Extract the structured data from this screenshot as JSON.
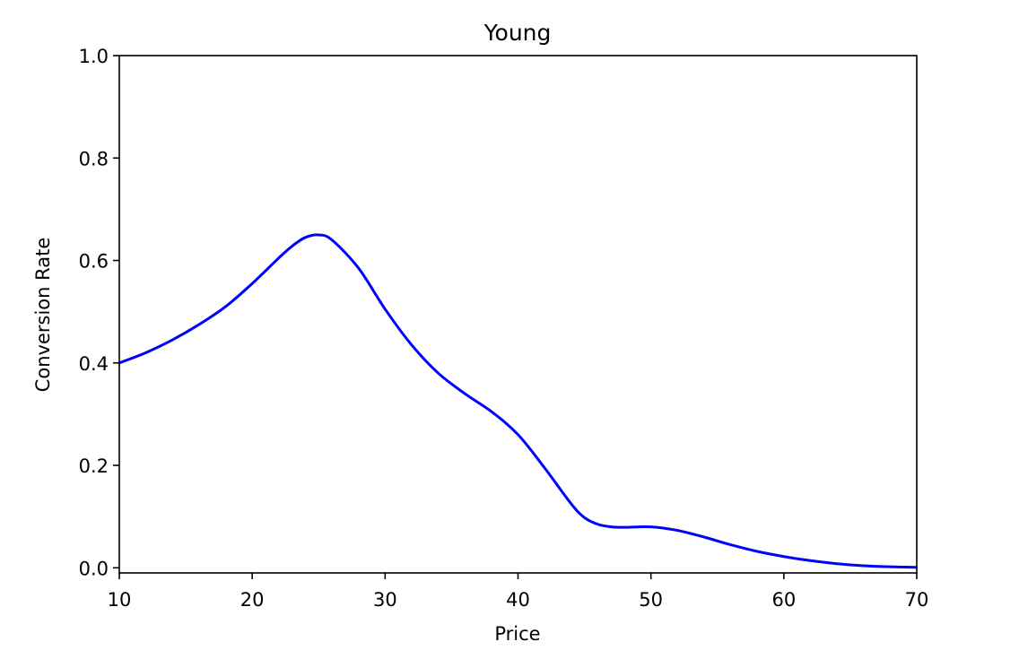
{
  "chart_data": {
    "type": "line",
    "title": "Young",
    "xlabel": "Price",
    "ylabel": "Conversion Rate",
    "xlim": [
      10,
      70
    ],
    "ylim": [
      -0.01,
      1.0
    ],
    "xticks": [
      10,
      20,
      30,
      40,
      50,
      60,
      70
    ],
    "yticks": [
      0.0,
      0.2,
      0.4,
      0.6,
      0.8,
      1.0
    ],
    "xtick_labels": [
      "10",
      "20",
      "30",
      "40",
      "50",
      "60",
      "70"
    ],
    "ytick_labels": [
      "0.0",
      "0.2",
      "0.4",
      "0.6",
      "0.8",
      "1.0"
    ],
    "grid": false,
    "series": [
      {
        "color": "#0000ff",
        "x": [
          10,
          12,
          14,
          16,
          18,
          20,
          22,
          23,
          24,
          25,
          26,
          28,
          30,
          32,
          34,
          36,
          38,
          40,
          42,
          44,
          45,
          46,
          47,
          48,
          50,
          52,
          54,
          56,
          58,
          60,
          62,
          64,
          66,
          68,
          70
        ],
        "y": [
          0.4,
          0.42,
          0.445,
          0.475,
          0.51,
          0.555,
          0.605,
          0.628,
          0.645,
          0.65,
          0.64,
          0.585,
          0.505,
          0.435,
          0.38,
          0.34,
          0.305,
          0.26,
          0.195,
          0.125,
          0.098,
          0.085,
          0.08,
          0.079,
          0.08,
          0.073,
          0.06,
          0.045,
          0.032,
          0.022,
          0.014,
          0.008,
          0.004,
          0.002,
          0.001
        ]
      }
    ]
  }
}
